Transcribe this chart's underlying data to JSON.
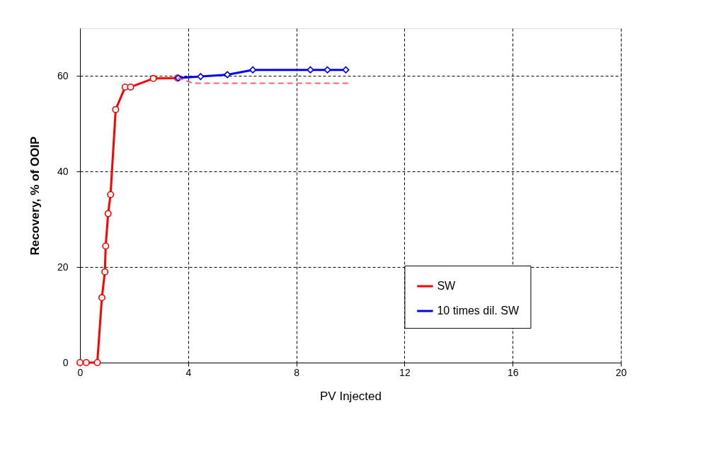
{
  "chart_data": {
    "type": "line",
    "xlabel": "PV Injected",
    "ylabel": "Recovery, %  of OOIP",
    "xlim": [
      0,
      20
    ],
    "xticks": [
      0,
      4,
      8,
      12,
      16,
      20
    ],
    "ylim": [
      0,
      70
    ],
    "yticks": [
      0,
      20,
      40,
      60
    ],
    "grid": true,
    "legend": "bottom right",
    "line_style": "solid",
    "series": [
      {
        "name": "SW",
        "color": "#ff0000",
        "marker": "circle",
        "x": [
          0,
          0.23,
          0.64,
          0.81,
          0.92,
          0.95,
          1.04,
          1.13,
          1.32,
          1.67,
          1.87,
          2.71,
          3.61
        ],
        "values": [
          0,
          0,
          0,
          13.6,
          19.0,
          24.4,
          31.2,
          35.2,
          53.0,
          57.7,
          57.7,
          59.5,
          59.6
        ]
      },
      {
        "name": "10 times dil. SW",
        "color": "#0000ff",
        "marker": "diamond",
        "x": [
          3.63,
          4.46,
          5.45,
          6.39,
          8.52,
          9.15,
          9.83
        ],
        "values": [
          59.6,
          59.9,
          60.3,
          61.3,
          61.3,
          61.3,
          61.3
        ]
      },
      {
        "color": "#ff6666",
        "marker": "none",
        "line_style": "dashed",
        "x": [
          3.61,
          4.2,
          9.94
        ],
        "values": [
          59.6,
          58.5,
          58.5
        ]
      }
    ]
  }
}
